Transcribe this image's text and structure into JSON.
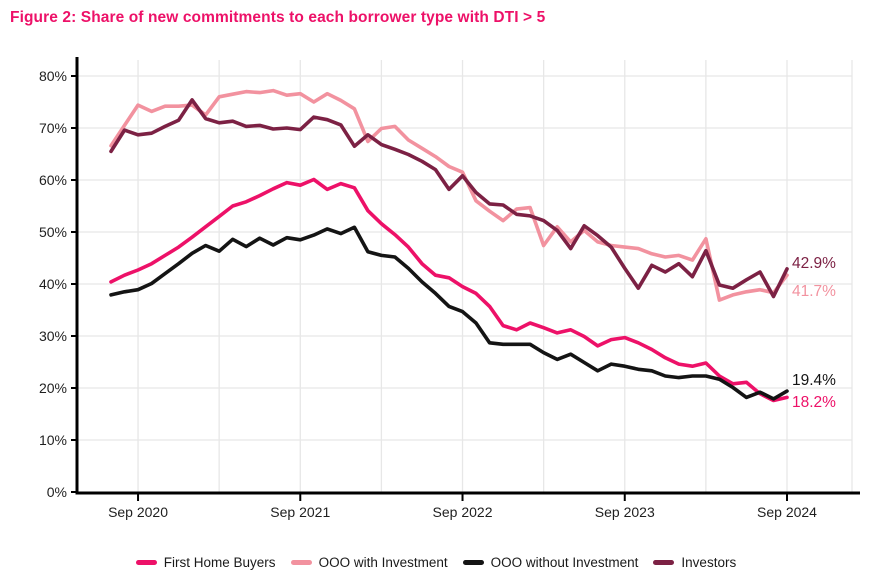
{
  "title": "Figure 2: Share of new commitments to each borrower type with DTI > 5",
  "title_color": "#ed1168",
  "axis_text_color": "#1f1f1f",
  "grid_color": "#e7e7e7",
  "axis_line_color": "#000000",
  "chart_data": {
    "type": "line",
    "x": [
      "Jul 2020",
      "Aug 2020",
      "Sep 2020",
      "Oct 2020",
      "Nov 2020",
      "Dec 2020",
      "Jan 2021",
      "Feb 2021",
      "Mar 2021",
      "Apr 2021",
      "May 2021",
      "Jun 2021",
      "Jul 2021",
      "Aug 2021",
      "Sep 2021",
      "Oct 2021",
      "Nov 2021",
      "Dec 2021",
      "Jan 2022",
      "Feb 2022",
      "Mar 2022",
      "Apr 2022",
      "May 2022",
      "Jun 2022",
      "Jul 2022",
      "Aug 2022",
      "Sep 2022",
      "Oct 2022",
      "Nov 2022",
      "Dec 2022",
      "Jan 2023",
      "Feb 2023",
      "Mar 2023",
      "Apr 2023",
      "May 2023",
      "Jun 2023",
      "Jul 2023",
      "Aug 2023",
      "Sep 2023",
      "Oct 2023",
      "Nov 2023",
      "Dec 2023",
      "Jan 2024",
      "Feb 2024",
      "Mar 2024",
      "Apr 2024",
      "May 2024",
      "Jun 2024",
      "Jul 2024",
      "Aug 2024",
      "Sep 2024"
    ],
    "x_axis_tick_labels": [
      "Sep 2020",
      "Sep 2021",
      "Sep 2022",
      "Sep 2023",
      "Sep 2024"
    ],
    "y_tick_labels": [
      "0%",
      "10%",
      "20%",
      "30%",
      "40%",
      "50%",
      "60%",
      "70%",
      "80%"
    ],
    "ylim": [
      0,
      80
    ],
    "grid": true,
    "legend_position": "bottom",
    "series": [
      {
        "name": "First Home Buyers",
        "color": "#ed1168",
        "end_label": "18.2%",
        "values": [
          40.4,
          41.7,
          42.7,
          43.9,
          45.5,
          47.1,
          49.0,
          51.0,
          53.0,
          55.0,
          55.8,
          57.0,
          58.3,
          59.5,
          59.0,
          60.1,
          58.2,
          59.3,
          58.5,
          54.1,
          51.6,
          49.5,
          47.1,
          43.9,
          41.7,
          41.2,
          39.5,
          38.2,
          35.7,
          32.0,
          31.2,
          32.5,
          31.6,
          30.6,
          31.2,
          29.9,
          28.1,
          29.3,
          29.7,
          28.7,
          27.4,
          25.8,
          24.6,
          24.2,
          24.8,
          22.3,
          20.8,
          21.1,
          18.9,
          17.6,
          18.2
        ]
      },
      {
        "name": "OOO with Investment",
        "color": "#f2929f",
        "end_label": "41.7%",
        "values": [
          66.6,
          70.5,
          74.4,
          73.2,
          74.2,
          74.2,
          74.4,
          72.5,
          76.0,
          76.5,
          77.0,
          76.8,
          77.2,
          76.3,
          76.6,
          75.0,
          76.6,
          75.3,
          73.7,
          67.4,
          69.9,
          70.3,
          67.7,
          66.1,
          64.5,
          62.6,
          61.5,
          56.0,
          54.0,
          52.2,
          54.4,
          54.7,
          47.4,
          51.0,
          48.1,
          50.3,
          48.1,
          47.4,
          47.1,
          46.8,
          45.8,
          45.2,
          45.5,
          44.6,
          48.7,
          36.9,
          37.9,
          38.5,
          38.9,
          38.3,
          41.7
        ]
      },
      {
        "name": "OOO without Investment",
        "color": "#141414",
        "end_label": "19.4%",
        "values": [
          37.9,
          38.5,
          38.9,
          40.1,
          42.0,
          43.9,
          45.9,
          47.4,
          46.3,
          48.6,
          47.2,
          48.8,
          47.5,
          48.9,
          48.5,
          49.4,
          50.6,
          49.7,
          50.9,
          46.2,
          45.5,
          45.2,
          43.0,
          40.4,
          38.2,
          35.7,
          34.7,
          32.5,
          28.7,
          28.4,
          28.4,
          28.4,
          26.8,
          25.5,
          26.5,
          24.9,
          23.3,
          24.6,
          24.2,
          23.6,
          23.3,
          22.3,
          22.0,
          22.3,
          22.3,
          21.7,
          20.1,
          18.2,
          19.2,
          17.9,
          19.4
        ]
      },
      {
        "name": "Investors",
        "color": "#7c2144",
        "end_label": "42.9%",
        "values": [
          65.5,
          69.6,
          68.7,
          69.0,
          70.3,
          71.5,
          75.4,
          71.8,
          71.0,
          71.3,
          70.3,
          70.5,
          69.8,
          70.0,
          69.7,
          72.1,
          71.6,
          70.6,
          66.5,
          68.7,
          66.8,
          65.9,
          64.9,
          63.6,
          62.0,
          58.2,
          60.8,
          57.6,
          55.4,
          55.2,
          53.4,
          53.1,
          52.2,
          50.3,
          46.8,
          51.2,
          49.3,
          47.1,
          43.0,
          39.2,
          43.6,
          42.3,
          43.9,
          41.4,
          46.4,
          39.8,
          39.2,
          40.8,
          42.3,
          37.6,
          42.9
        ]
      }
    ]
  }
}
